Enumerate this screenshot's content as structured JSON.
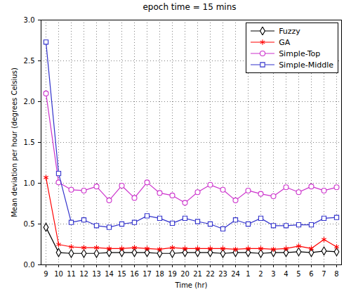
{
  "chart_data": {
    "type": "line",
    "title": "epoch time = 15 mins",
    "x_label": "Time (hr)",
    "y_label": "Mean deviation per hour (degrees Celsius)",
    "categories": [
      "9",
      "10",
      "11",
      "12",
      "13",
      "14",
      "15",
      "16",
      "17",
      "18",
      "19",
      "20",
      "21",
      "22",
      "23",
      "24",
      "1",
      "2",
      "3",
      "4",
      "5",
      "6",
      "7",
      "8"
    ],
    "series": [
      {
        "name": "Fuzzy",
        "color": "#000000",
        "marker": "diamond",
        "values": [
          0.46,
          0.15,
          0.14,
          0.14,
          0.14,
          0.15,
          0.15,
          0.15,
          0.15,
          0.14,
          0.14,
          0.15,
          0.15,
          0.15,
          0.14,
          0.15,
          0.15,
          0.14,
          0.15,
          0.15,
          0.16,
          0.15,
          0.17,
          0.16
        ]
      },
      {
        "name": "GA",
        "color": "#ff0000",
        "marker": "asterisk",
        "values": [
          1.07,
          0.25,
          0.22,
          0.21,
          0.21,
          0.2,
          0.2,
          0.21,
          0.2,
          0.19,
          0.21,
          0.2,
          0.2,
          0.2,
          0.2,
          0.19,
          0.2,
          0.2,
          0.19,
          0.2,
          0.23,
          0.2,
          0.31,
          0.22
        ]
      },
      {
        "name": "Simple-Top",
        "color": "#cc33cc",
        "marker": "circle",
        "values": [
          2.1,
          1.01,
          0.92,
          0.91,
          0.96,
          0.79,
          0.97,
          0.82,
          1.01,
          0.88,
          0.85,
          0.76,
          0.89,
          0.98,
          0.92,
          0.79,
          0.91,
          0.87,
          0.84,
          0.95,
          0.89,
          0.96,
          0.91,
          0.95
        ]
      },
      {
        "name": "Simple-Middle",
        "color": "#3333cc",
        "marker": "square",
        "values": [
          2.73,
          1.12,
          0.52,
          0.55,
          0.48,
          0.46,
          0.5,
          0.52,
          0.6,
          0.57,
          0.51,
          0.57,
          0.53,
          0.5,
          0.44,
          0.55,
          0.5,
          0.57,
          0.48,
          0.48,
          0.49,
          0.49,
          0.57,
          0.58
        ]
      }
    ],
    "ylim": [
      0,
      3
    ],
    "yticks": [
      0,
      0.5,
      1,
      1.5,
      2,
      2.5,
      3
    ],
    "grid": true,
    "legend": "northeast"
  }
}
